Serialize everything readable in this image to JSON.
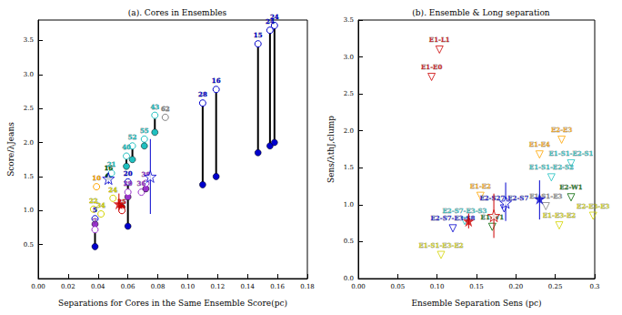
{
  "chart_data": [
    {
      "type": "scatter",
      "title": "(a). Cores in Ensembles",
      "x_label": "Separations for Cores in the Same Ensemble Score(pc)",
      "y_label": "Score/λJeans",
      "xlim": [
        0,
        0.18
      ],
      "xticks": [
        {
          "value": 0,
          "label": "0.00"
        },
        0.02,
        0.04,
        0.06,
        0.08,
        {
          "value": 0.1,
          "label": "0.10"
        },
        0.12,
        0.14,
        0.16,
        0.18
      ],
      "ylim": [
        0,
        3.8
      ],
      "yticks": [
        0.5,
        {
          "value": 1,
          "label": "1.0"
        },
        1.5,
        {
          "value": 2,
          "label": "2.0"
        },
        2.5,
        {
          "value": 3,
          "label": "3.0"
        },
        3.5
      ],
      "grid": false,
      "marker": "circle",
      "pairs": [
        {
          "x": 0.038,
          "low": 0.47,
          "high": 0.88,
          "label": "5",
          "color": "#0000cd"
        },
        {
          "x": 0.038,
          "low": 0.8,
          "high": 0.72,
          "label": "7",
          "color": "#9932cc"
        },
        {
          "x": 0.039,
          "low": null,
          "high": 1.35,
          "label": "10",
          "color": "#ffa500"
        },
        {
          "x": 0.037,
          "low": null,
          "high": 1.02,
          "label": "22",
          "color": "#d4d400"
        },
        {
          "x": 0.042,
          "low": null,
          "high": 0.95,
          "label": "34",
          "color": "#d4d400"
        },
        {
          "x": 0.047,
          "low": 1.5,
          "high": null,
          "label": "16",
          "color": "#006400"
        },
        {
          "x": 0.049,
          "low": null,
          "high": 1.55,
          "label": "21",
          "color": "#20c0c0"
        },
        {
          "x": 0.05,
          "low": null,
          "high": 1.18,
          "label": "24",
          "color": "#d4d400"
        },
        {
          "x": 0.056,
          "low": 1.05,
          "high": 1.0,
          "label": "25",
          "color": "#cc0000"
        },
        {
          "x": 0.06,
          "low": 0.77,
          "high": 1.42,
          "label": "20",
          "color": "#0000cd"
        },
        {
          "x": 0.06,
          "low": 1.2,
          "high": 1.27,
          "label": "29",
          "color": "#9932cc"
        },
        {
          "x": 0.059,
          "low": 1.65,
          "high": 1.8,
          "label": "40",
          "color": "#20c0c0"
        },
        {
          "x": 0.063,
          "low": 1.75,
          "high": 1.95,
          "label": "52",
          "color": "#20c0c0"
        },
        {
          "x": 0.069,
          "low": null,
          "high": 1.27,
          "label": "36",
          "color": "#9932cc"
        },
        {
          "x": 0.072,
          "low": 1.32,
          "high": 1.4,
          "label": "38",
          "color": "#9932cc"
        },
        {
          "x": 0.071,
          "low": 1.95,
          "high": 2.05,
          "label": "55",
          "color": "#20c0c0"
        },
        {
          "x": 0.078,
          "low": 2.15,
          "high": 2.4,
          "label": "43",
          "color": "#20c0c0"
        },
        {
          "x": 0.085,
          "low": null,
          "high": 2.37,
          "label": "62",
          "color": "#808080"
        },
        {
          "x": 0.11,
          "low": 1.38,
          "high": 2.58,
          "label": "28",
          "color": "#0000cd"
        },
        {
          "x": 0.119,
          "low": 1.5,
          "high": 2.78,
          "label": "16",
          "color": "#0000cd"
        },
        {
          "x": 0.147,
          "low": 1.85,
          "high": 3.45,
          "label": "15",
          "color": "#0000cd"
        },
        {
          "x": 0.155,
          "low": 1.95,
          "high": 3.65,
          "label": "24",
          "color": "#0000cd"
        },
        {
          "x": 0.158,
          "low": 2.0,
          "high": 3.72,
          "label": "24",
          "color": "#0000cd"
        }
      ],
      "stars": [
        {
          "x": 0.054,
          "y": 1.1,
          "yerr": [
            0.1,
            0.15
          ],
          "color": "#cc0000",
          "marker": "filled_star"
        },
        {
          "x": 0.047,
          "y": 1.47,
          "yerr": [
            0.08,
            0.08
          ],
          "color": "#0000cd",
          "marker": "open_star"
        },
        {
          "x": 0.075,
          "y": 1.5,
          "yerr": [
            0.55,
            0.55
          ],
          "color": "#0000cd",
          "marker": "open_star"
        }
      ]
    },
    {
      "type": "scatter",
      "title": "(b). Ensemble & Long separation",
      "x_label": "Ensemble Separation Sens (pc)",
      "y_label": "Sens/λthJ,clump",
      "xlim": [
        0,
        0.3
      ],
      "xticks": [
        {
          "value": 0,
          "label": "0.00"
        },
        0.05,
        {
          "value": 0.1,
          "label": "0.10"
        },
        0.15,
        {
          "value": 0.2,
          "label": "0.20"
        },
        0.25,
        0.3
      ],
      "ylim": [
        0,
        3.5
      ],
      "yticks": [
        {
          "value": 0,
          "label": "0.0"
        },
        0.5,
        {
          "value": 1,
          "label": "1.0"
        },
        1.5,
        {
          "value": 2,
          "label": "2.0"
        },
        2.5,
        {
          "value": 3,
          "label": "3.0"
        },
        3.5
      ],
      "grid": false,
      "marker": "open_triangle_down",
      "points": [
        {
          "x": 0.103,
          "y": 3.1,
          "label": "E1-L1",
          "color": "#cc0000"
        },
        {
          "x": 0.093,
          "y": 2.73,
          "label": "E1-E0",
          "color": "#cc0000"
        },
        {
          "x": 0.258,
          "y": 1.88,
          "label": "E2-E3",
          "color": "#ffa500"
        },
        {
          "x": 0.23,
          "y": 1.68,
          "label": "E1-E4",
          "color": "#ffa500"
        },
        {
          "x": 0.27,
          "y": 1.56,
          "label": "E1-S1-E2-S1",
          "color": "#20c0c0"
        },
        {
          "x": 0.245,
          "y": 1.37,
          "label": "E1-S1-E2-S2",
          "color": "#20c0c0"
        },
        {
          "x": 0.155,
          "y": 1.12,
          "label": "E1-E2",
          "color": "#ffa500"
        },
        {
          "x": 0.27,
          "y": 1.1,
          "label": "E2-W1",
          "color": "#006400"
        },
        {
          "x": 0.238,
          "y": 0.98,
          "label": "E1-S1-E3",
          "color": "#808080"
        },
        {
          "x": 0.298,
          "y": 0.85,
          "label": "E2-E3-E3",
          "color": "#d4d400"
        },
        {
          "x": 0.255,
          "y": 0.72,
          "label": "E1-E3-E2",
          "color": "#d4d400"
        },
        {
          "x": 0.105,
          "y": 0.32,
          "label": "E1-S1-E3-E2",
          "color": "#d4d400"
        },
        {
          "x": 0.185,
          "y": 0.95,
          "label": "E2-S27-E2-S7",
          "color": "#0000cd"
        },
        {
          "x": 0.135,
          "y": 0.78,
          "label": "E2-S7-E3-S3",
          "color": "#20c0c0"
        },
        {
          "x": 0.12,
          "y": 0.68,
          "label": "E2-S7-E3-S8",
          "color": "#0000cd"
        },
        {
          "x": 0.17,
          "y": 0.7,
          "label": "E1-W1",
          "color": "#006400"
        }
      ],
      "stars": [
        {
          "x": 0.14,
          "y": 0.78,
          "yerr": [
            0.1,
            0.1
          ],
          "color": "#cc0000",
          "marker": "filled_star"
        },
        {
          "x": 0.172,
          "y": 0.85,
          "yerr": [
            0.3,
            0.3
          ],
          "color": "#cc0000",
          "marker": "open_star"
        },
        {
          "x": 0.187,
          "y": 1.03,
          "yerr": [
            0.25,
            0.27
          ],
          "color": "#0000cd",
          "marker": "open_star"
        },
        {
          "x": 0.23,
          "y": 1.08,
          "yerr": [
            0.28,
            0.25
          ],
          "color": "#0000cd",
          "marker": "filled_star"
        }
      ]
    }
  ]
}
